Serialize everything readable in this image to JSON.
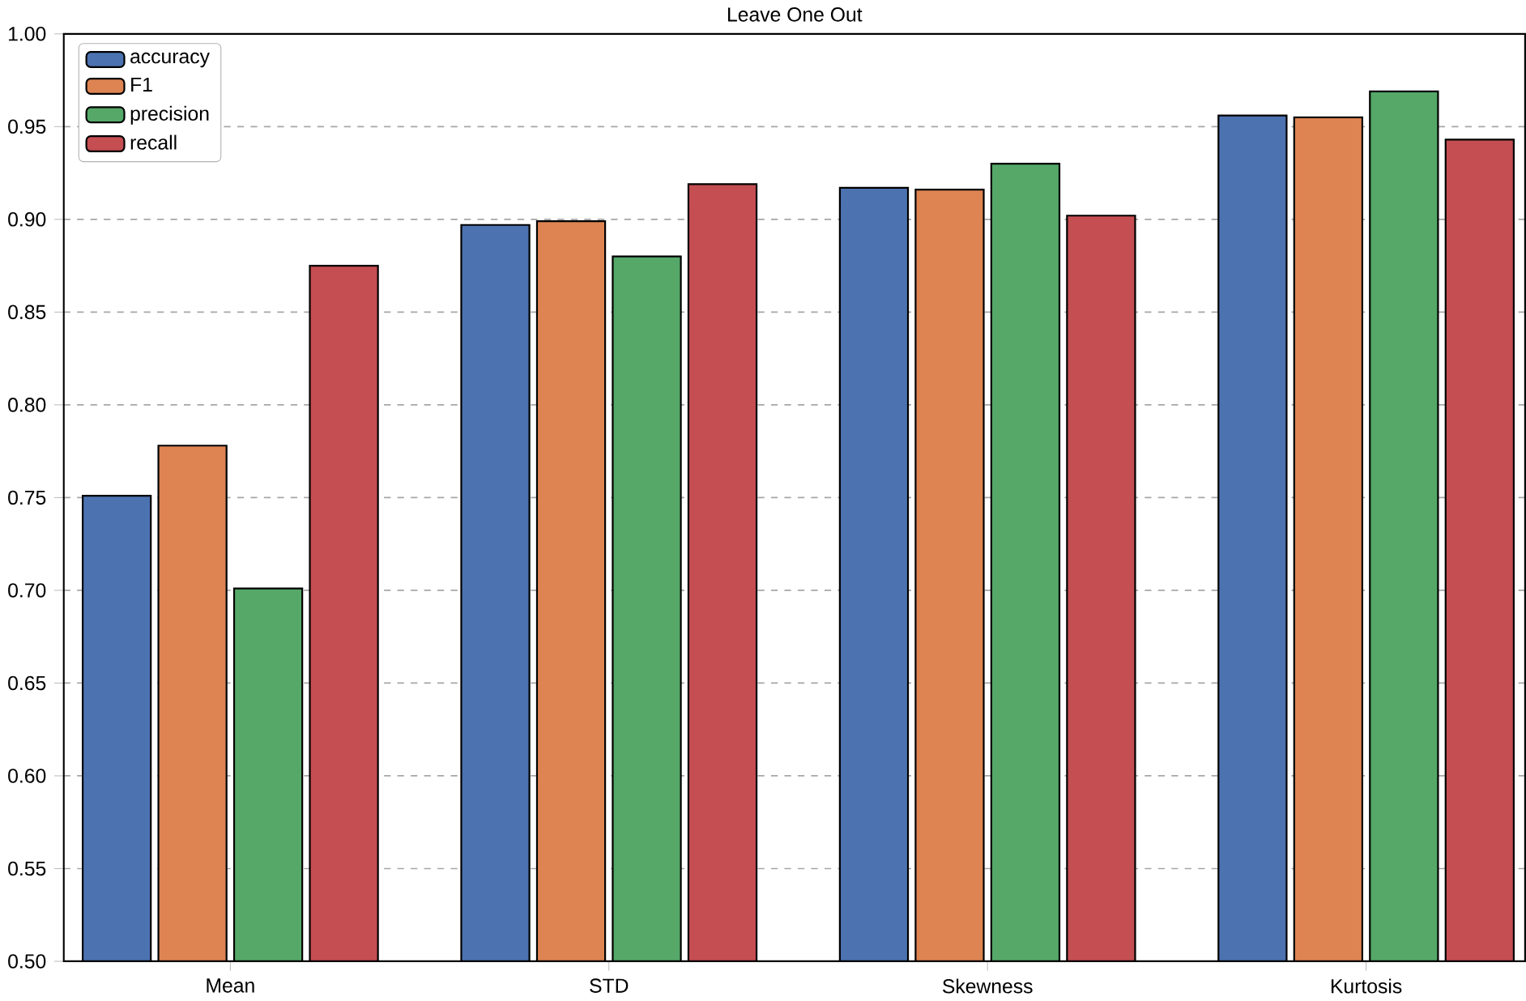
{
  "chart_data": {
    "type": "bar",
    "title": "Leave One Out",
    "categories": [
      "Mean",
      "STD",
      "Skewness",
      "Kurtosis"
    ],
    "series": [
      {
        "name": "accuracy",
        "color": "#4c72b0",
        "values": [
          0.751,
          0.897,
          0.917,
          0.956
        ]
      },
      {
        "name": "F1",
        "color": "#dd8452",
        "values": [
          0.778,
          0.899,
          0.916,
          0.955
        ]
      },
      {
        "name": "precision",
        "color": "#55a868",
        "values": [
          0.701,
          0.88,
          0.93,
          0.969
        ]
      },
      {
        "name": "recall",
        "color": "#c44e52",
        "values": [
          0.875,
          0.919,
          0.902,
          0.943
        ]
      }
    ],
    "ylim": [
      0.5,
      1.0
    ],
    "yticks": [
      {
        "value": 0.5,
        "label": "0.50"
      },
      {
        "value": 0.55,
        "label": "0.55"
      },
      {
        "value": 0.6,
        "label": "0.60"
      },
      {
        "value": 0.65,
        "label": "0.65"
      },
      {
        "value": 0.7,
        "label": "0.70"
      },
      {
        "value": 0.75,
        "label": "0.75"
      },
      {
        "value": 0.8,
        "label": "0.80"
      },
      {
        "value": 0.85,
        "label": "0.85"
      },
      {
        "value": 0.9,
        "label": "0.90"
      },
      {
        "value": 0.95,
        "label": "0.95"
      },
      {
        "value": 1.0,
        "label": "1.00"
      }
    ],
    "grid": "y",
    "legend": "top left"
  }
}
